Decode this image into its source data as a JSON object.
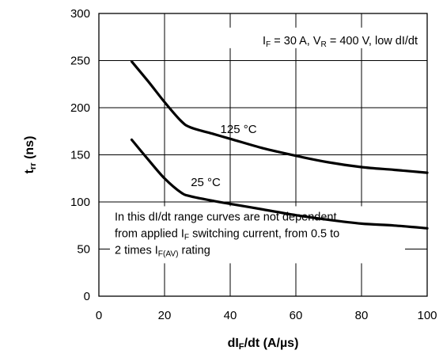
{
  "chart_data": {
    "type": "line",
    "xlabel": {
      "main": "dI",
      "sub": "F",
      "rest": "/dt (A/µs)"
    },
    "ylabel": {
      "main": "t",
      "sub": "rr",
      "rest": " (ns)"
    },
    "xlim": [
      0,
      100
    ],
    "ylim": [
      0,
      300
    ],
    "xticks": [
      "0",
      "20",
      "40",
      "60",
      "80",
      "100"
    ],
    "yticks": [
      "0",
      "50",
      "100",
      "150",
      "200",
      "250",
      "300"
    ],
    "grid": true,
    "conditions": {
      "parts": [
        {
          "t": "I"
        },
        {
          "t": "F",
          "sub": true
        },
        {
          "t": " = 30 A, V"
        },
        {
          "t": "R",
          "sub": true
        },
        {
          "t": " = 400 V, low dI/dt"
        }
      ]
    },
    "note": {
      "line1": "In this dI/dt range curves are not dependent",
      "line2": [
        {
          "t": "from applied I"
        },
        {
          "t": "F",
          "sub": true
        },
        {
          "t": " switching current, from 0.5 to"
        }
      ],
      "line3": [
        {
          "t": "2 times I"
        },
        {
          "t": "F(AV)",
          "sub": true
        },
        {
          "t": " rating"
        }
      ]
    },
    "series": [
      {
        "name": "125 °C",
        "x": [
          10,
          15,
          20,
          25,
          28,
          35,
          40,
          50,
          60,
          70,
          80,
          90,
          100
        ],
        "y": [
          249,
          228,
          206,
          186,
          179,
          172,
          167,
          157,
          149,
          142,
          137,
          134,
          131
        ]
      },
      {
        "name": "25 °C",
        "x": [
          10,
          15,
          20,
          25,
          28,
          35,
          40,
          50,
          60,
          70,
          80,
          90,
          100
        ],
        "y": [
          166,
          145,
          125,
          110,
          106,
          101,
          98,
          92,
          86,
          81,
          77,
          75,
          72
        ]
      }
    ],
    "series_label_at": [
      {
        "x": 37,
        "y": 173
      },
      {
        "x": 28,
        "y": 117
      }
    ]
  }
}
